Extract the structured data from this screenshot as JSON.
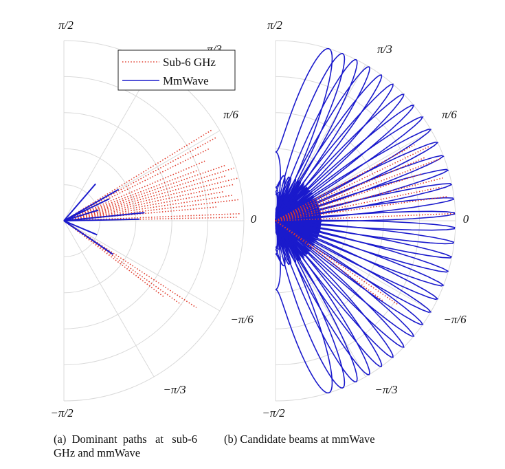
{
  "chart_data": [
    {
      "type": "polar",
      "angle_range": [
        -1.5708,
        1.5708
      ],
      "radius_range": [
        0,
        1
      ],
      "angular_tick_labels": [
        "π/2",
        "π/3",
        "π/6",
        "0",
        "−π/6",
        "−π/3",
        "−π/2"
      ],
      "grid": true,
      "legend": {
        "placement": "top-right",
        "entries": [
          "Sub-6 GHz",
          "MmWave"
        ]
      },
      "series": [
        {
          "name": "Sub-6 GHz",
          "style": "dotted",
          "color": "#e03a2a",
          "paths": [
            {
              "angle": 0.55,
              "r": 0.97
            },
            {
              "angle": 0.5,
              "r": 0.97
            },
            {
              "angle": 0.46,
              "r": 0.9
            },
            {
              "angle": 0.4,
              "r": 0.85
            },
            {
              "angle": 0.36,
              "r": 0.8
            },
            {
              "angle": 0.33,
              "r": 0.95
            },
            {
              "angle": 0.3,
              "r": 0.99
            },
            {
              "angle": 0.27,
              "r": 0.93
            },
            {
              "angle": 0.24,
              "r": 1.0
            },
            {
              "angle": 0.21,
              "r": 0.97
            },
            {
              "angle": 0.18,
              "r": 0.9
            },
            {
              "angle": 0.15,
              "r": 0.95
            },
            {
              "angle": 0.12,
              "r": 0.98
            },
            {
              "angle": 0.09,
              "r": 0.85
            },
            {
              "angle": 0.04,
              "r": 0.98
            },
            {
              "angle": 0.02,
              "r": 0.96
            },
            {
              "angle": -0.58,
              "r": 0.88
            },
            {
              "angle": -0.62,
              "r": 0.8
            },
            {
              "angle": -0.65,
              "r": 0.7
            }
          ]
        },
        {
          "name": "MmWave",
          "style": "solid",
          "color": "#1a1acc",
          "paths": [
            {
              "angle": 0.86,
              "r": 0.27
            },
            {
              "angle": 0.52,
              "r": 0.35
            },
            {
              "angle": 0.45,
              "r": 0.28
            },
            {
              "angle": 0.3,
              "r": 0.2
            },
            {
              "angle": 0.1,
              "r": 0.45
            },
            {
              "angle": 0.02,
              "r": 0.42
            },
            {
              "angle": -0.4,
              "r": 0.2
            },
            {
              "angle": -0.6,
              "r": 0.33
            }
          ]
        }
      ]
    },
    {
      "type": "polar",
      "angle_range": [
        -1.5708,
        1.5708
      ],
      "radius_range": [
        0,
        1
      ],
      "angular_tick_labels": [
        "π/2",
        "π/3",
        "π/6",
        "0",
        "−π/6",
        "−π/3",
        "−π/2"
      ],
      "grid": true,
      "series": [
        {
          "name": "MmWave",
          "style": "solid",
          "color": "#1a1acc",
          "beam_count": 32,
          "beam_steering_range": [
            -1.27,
            1.27
          ],
          "beam_peak_r": 1.0
        },
        {
          "name": "Sub-6 GHz",
          "style": "dotted",
          "color": "#e03a2a",
          "paths": [
            {
              "angle": 0.5,
              "r": 0.88
            },
            {
              "angle": 0.45,
              "r": 0.95
            },
            {
              "angle": 0.4,
              "r": 0.9
            },
            {
              "angle": 0.36,
              "r": 0.98
            },
            {
              "angle": 0.31,
              "r": 0.85
            },
            {
              "angle": 0.25,
              "r": 0.97
            },
            {
              "angle": 0.2,
              "r": 0.94
            },
            {
              "angle": 0.14,
              "r": 0.96
            },
            {
              "angle": 0.04,
              "r": 0.99
            },
            {
              "angle": -0.6,
              "r": 0.82
            },
            {
              "angle": -0.64,
              "r": 0.75
            }
          ]
        }
      ]
    }
  ],
  "captions": {
    "a": "(a) Dominant paths at sub-6 GHz and mmWave",
    "b": "(b) Candidate beams at mmWave"
  }
}
